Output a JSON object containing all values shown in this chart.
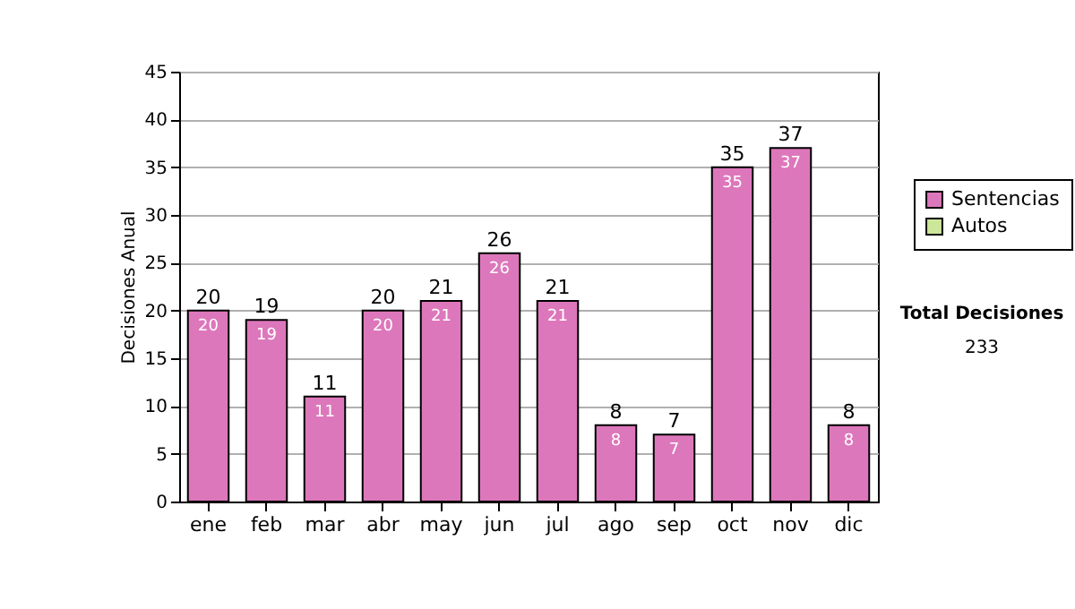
{
  "chart_data": {
    "type": "bar",
    "ylabel": "Decisiones Anual",
    "categories": [
      "ene",
      "feb",
      "mar",
      "abr",
      "may",
      "jun",
      "jul",
      "ago",
      "sep",
      "oct",
      "nov",
      "dic"
    ],
    "series": [
      {
        "name": "Sentencias",
        "color": "#dd77bb",
        "values": [
          20,
          19,
          11,
          20,
          21,
          26,
          21,
          8,
          7,
          35,
          37,
          8
        ]
      },
      {
        "name": "Autos",
        "color": "#cce69a",
        "values": [
          null,
          null,
          null,
          null,
          null,
          null,
          null,
          null,
          null,
          null,
          null,
          null
        ]
      }
    ],
    "stacked": true,
    "data_labels": true,
    "totals": [
      "20",
      "19",
      "11",
      "20",
      "21",
      "26",
      "21",
      "8",
      "7",
      "35",
      "37",
      "8"
    ],
    "ylim": [
      0,
      45
    ],
    "yticks": [
      0,
      5,
      10,
      15,
      20,
      25,
      30,
      35,
      40,
      45
    ],
    "grid": "y",
    "legend": "right",
    "annotations": [
      "Total Decisiones",
      "233"
    ]
  }
}
